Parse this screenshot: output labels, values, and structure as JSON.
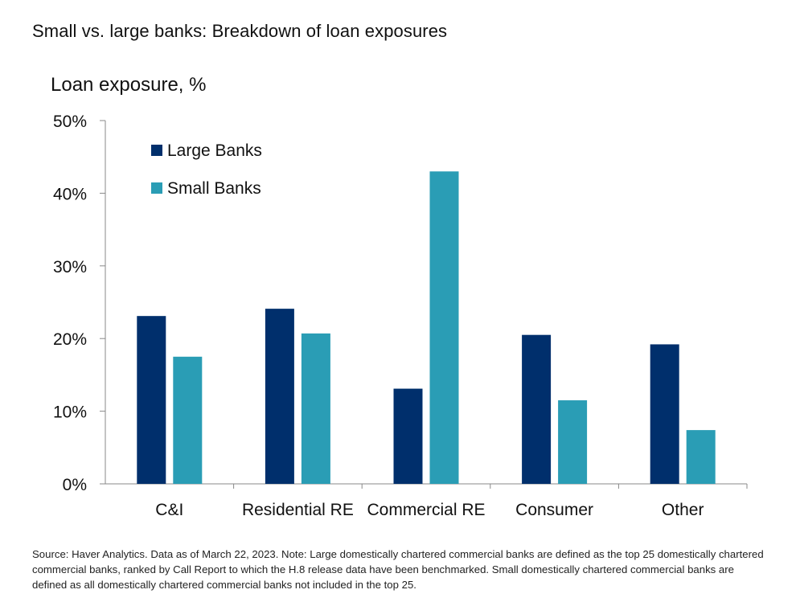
{
  "title": "Small vs. large banks: Breakdown of loan exposures",
  "source": "Source: Haver Analytics. Data as of March 22, 2023. Note: Large domestically chartered commercial banks are defined as the top 25 domestically chartered commercial banks, ranked by Call Report to which the H.8 release data have been benchmarked. Small domestically chartered commercial banks are defined as all domestically chartered commercial banks not included in the top 25.",
  "chart_data": {
    "type": "bar",
    "title": "Small vs. large banks: Breakdown of loan exposures",
    "xlabel": "",
    "ylabel": "Loan exposure, %",
    "categories": [
      "C&I",
      "Residential RE",
      "Commercial RE",
      "Consumer",
      "Other"
    ],
    "series": [
      {
        "name": "Large Banks",
        "color": "#002f6c",
        "values": [
          23.1,
          24.1,
          13.1,
          20.5,
          19.2
        ]
      },
      {
        "name": "Small Banks",
        "color": "#2a9db5",
        "values": [
          17.5,
          20.7,
          43.0,
          11.5,
          7.4
        ]
      }
    ],
    "ylim": [
      0,
      50
    ],
    "yticks": [
      0,
      10,
      20,
      30,
      40,
      50
    ],
    "ytick_labels": [
      "0%",
      "10%",
      "20%",
      "30%",
      "40%",
      "50%"
    ],
    "grid": false,
    "legend": "top-left"
  }
}
